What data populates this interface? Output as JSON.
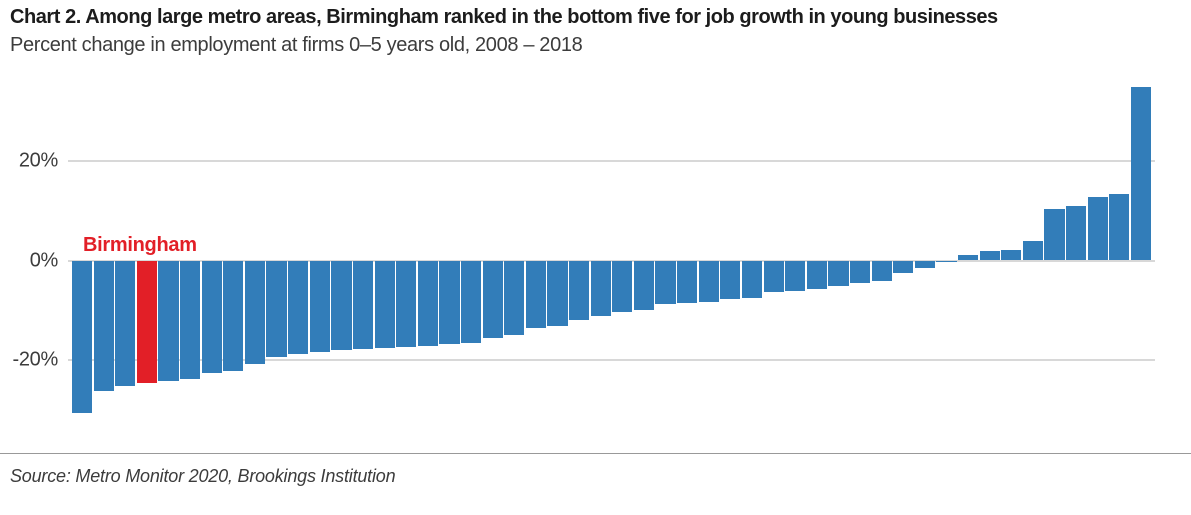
{
  "header": {
    "title": "Chart 2. Among large metro areas, Birmingham ranked in the bottom five for job growth in young businesses",
    "subtitle": "Percent change in employment at firms 0–5 years old, 2008 – 2018"
  },
  "chart_data": {
    "type": "bar",
    "title": "Chart 2. Among large metro areas, Birmingham ranked in the bottom five for job growth in young businesses",
    "subtitle": "Percent change in employment at firms 0–5 years old, 2008 – 2018",
    "unit": "percent",
    "sorted": "ascending",
    "grid": true,
    "ylim": [
      -32,
      36
    ],
    "yticks": [
      {
        "label": "20%",
        "value": 20
      },
      {
        "label": "0%",
        "value": 0
      },
      {
        "label": "-20%",
        "value": -20
      }
    ],
    "values": [
      -30.8,
      -26.3,
      -25.2,
      -24.6,
      -24.2,
      -23.8,
      -22.6,
      -22.3,
      -20.8,
      -19.5,
      -18.8,
      -18.4,
      -18.1,
      -17.8,
      -17.6,
      -17.4,
      -17.2,
      -16.9,
      -16.7,
      -15.7,
      -15.1,
      -13.6,
      -13.1,
      -11.9,
      -11.1,
      -10.4,
      -10.0,
      -8.7,
      -8.6,
      -8.4,
      -7.7,
      -7.6,
      -6.3,
      -6.2,
      -5.7,
      -5.1,
      -4.5,
      -4.1,
      -2.5,
      -1.5,
      -0.4,
      1.2,
      2.0,
      2.1,
      3.9,
      10.3,
      10.9,
      12.7,
      13.3,
      34.9
    ],
    "bar_color": "#327db9",
    "highlight": {
      "index": 3,
      "label": "Birmingham",
      "value": -24.6,
      "color": "#e21f27"
    }
  },
  "footer": {
    "source": "Source: Metro Monitor 2020, Brookings Institution"
  },
  "colors": {
    "bar_blue": "#327db9",
    "bar_red": "#e21f27",
    "gridline": "#d8d8d8",
    "title_text": "#1c1c1c",
    "body_text": "#3c3c3c",
    "divider": "#999999"
  }
}
